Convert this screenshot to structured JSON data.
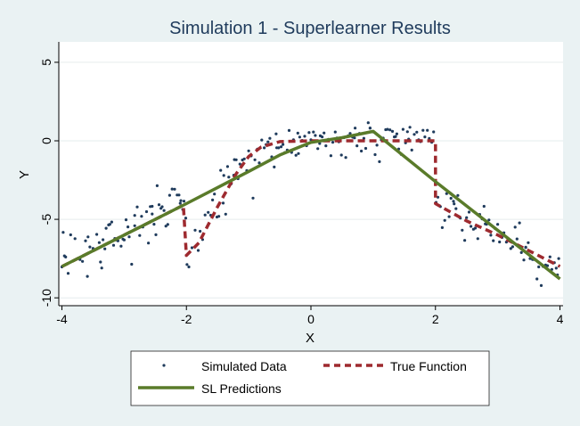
{
  "chart_data": {
    "type": "line",
    "title": "Simulation 1 - Superlearner Results",
    "xlabel": "X",
    "ylabel": "Y",
    "xlim": [
      -4.05,
      4.05
    ],
    "ylim": [
      -10.5,
      6.3
    ],
    "x_ticks": [
      -4,
      -2,
      0,
      2,
      4
    ],
    "x_tick_labels": [
      "-4",
      "-2",
      "0",
      "2",
      "4"
    ],
    "y_ticks": [
      5,
      0,
      -5,
      -10
    ],
    "y_tick_labels": [
      "5",
      "0",
      "-5",
      "-10"
    ],
    "grid": "horizontal",
    "legend_position": "bottom",
    "legend": {
      "scatter": "Simulated Data",
      "true_function": "True Function",
      "sl": "SL Predictions"
    },
    "colors": {
      "background": "#eaf2f3",
      "plot_area": "#ffffff",
      "title": "#1f3b5c",
      "scatter": "#1f3b5c",
      "true_function": "#9e2a2f",
      "sl": "#5a7b2a"
    },
    "series": [
      {
        "key": "true_function",
        "type": "line",
        "style": "dashed",
        "x": [
          -4,
          -3,
          -2.05,
          -2,
          -1.8,
          -1.5,
          -1.2,
          -1,
          -0.8,
          -0.5,
          0,
          1,
          2,
          2,
          2.5,
          3,
          3.5,
          4
        ],
        "y": [
          -8,
          -6,
          -4.1,
          -7.3,
          -6.5,
          -4.2,
          -2.1,
          -1,
          -0.4,
          -0.05,
          0,
          0,
          0,
          -4,
          -5.1,
          -6,
          -7,
          -8
        ]
      },
      {
        "key": "sl",
        "type": "line",
        "style": "solid",
        "x": [
          -4,
          -2,
          -1,
          -0.5,
          0,
          0.5,
          1,
          2,
          3,
          4
        ],
        "y": [
          -8,
          -4,
          -1.95,
          -0.9,
          -0.1,
          0.2,
          0.6,
          -2.6,
          -5.7,
          -8.8
        ]
      },
      {
        "key": "scatter",
        "type": "scatter",
        "points": [
          [
            -4.0,
            -8.03
          ],
          [
            -3.98,
            -5.83
          ],
          [
            -3.96,
            -7.33
          ],
          [
            -3.94,
            -7.4
          ],
          [
            -3.9,
            -8.44
          ],
          [
            -3.86,
            -5.99
          ],
          [
            -3.79,
            -6.23
          ],
          [
            -3.71,
            -7.56
          ],
          [
            -3.62,
            -6.37
          ],
          [
            -3.59,
            -8.63
          ],
          [
            -3.58,
            -6.12
          ],
          [
            -3.55,
            -6.76
          ],
          [
            -3.5,
            -6.85
          ],
          [
            -3.44,
            -5.96
          ],
          [
            -3.4,
            -6.48
          ],
          [
            -3.38,
            -7.72
          ],
          [
            -3.36,
            -8.1
          ],
          [
            -3.34,
            -6.3
          ],
          [
            -3.31,
            -6.88
          ],
          [
            -3.29,
            -5.57
          ],
          [
            -3.25,
            -5.36
          ],
          [
            -3.23,
            -5.32
          ],
          [
            -3.2,
            -5.17
          ],
          [
            -3.17,
            -6.65
          ],
          [
            -3.15,
            -6.22
          ],
          [
            -3.13,
            -6.31
          ],
          [
            -3.1,
            -6.37
          ],
          [
            -3.05,
            -6.71
          ],
          [
            -3.02,
            -6.26
          ],
          [
            -3.0,
            -6.31
          ],
          [
            -2.97,
            -5.03
          ],
          [
            -2.94,
            -5.48
          ],
          [
            -2.92,
            -6.11
          ],
          [
            -2.88,
            -7.86
          ],
          [
            -2.83,
            -4.75
          ],
          [
            -2.79,
            -4.21
          ],
          [
            -2.75,
            -6.03
          ],
          [
            -2.72,
            -4.81
          ],
          [
            -2.7,
            -5.49
          ],
          [
            -2.68,
            -5.35
          ],
          [
            -2.64,
            -4.51
          ],
          [
            -2.61,
            -6.51
          ],
          [
            -2.58,
            -4.19
          ],
          [
            -2.55,
            -4.17
          ],
          [
            -2.52,
            -5.31
          ],
          [
            -2.49,
            -5.98
          ],
          [
            -2.47,
            -2.86
          ],
          [
            -2.44,
            -4.07
          ],
          [
            -2.41,
            -4.3
          ],
          [
            -2.39,
            -4.2
          ],
          [
            -2.36,
            -4.44
          ],
          [
            -2.33,
            -5.43
          ],
          [
            -2.3,
            -5.33
          ],
          [
            -2.27,
            -3.47
          ],
          [
            -2.23,
            -3.07
          ],
          [
            -2.19,
            -3.08
          ],
          [
            -2.15,
            -3.45
          ],
          [
            -2.12,
            -3.45
          ],
          [
            -2.09,
            -3.81
          ],
          [
            -2.06,
            -4.37
          ],
          [
            -2.04,
            -3.84
          ],
          [
            -2.01,
            -4.92
          ],
          [
            -1.99,
            -7.88
          ],
          [
            -1.96,
            -8.03
          ],
          [
            -1.91,
            -6.81
          ],
          [
            -1.86,
            -5.69
          ],
          [
            -1.81,
            -6.98
          ],
          [
            -1.78,
            -5.76
          ],
          [
            -1.74,
            -6.29
          ],
          [
            -1.7,
            -4.72
          ],
          [
            -1.65,
            -4.56
          ],
          [
            -1.61,
            -4.74
          ],
          [
            -1.58,
            -3.77
          ],
          [
            -1.55,
            -3.39
          ],
          [
            -1.51,
            -4.85
          ],
          [
            -1.48,
            -4.81
          ],
          [
            -1.45,
            -1.88
          ],
          [
            -1.41,
            -3.97
          ],
          [
            -1.37,
            -4.67
          ],
          [
            -1.34,
            -1.64
          ],
          [
            -1.32,
            -2.31
          ],
          [
            -1.28,
            -2.73
          ],
          [
            -1.24,
            -2.19
          ],
          [
            -1.2,
            -1.21
          ],
          [
            -1.17,
            -2.41
          ],
          [
            -1.14,
            -1.48
          ],
          [
            -1.1,
            -1.22
          ],
          [
            -1.07,
            -1.15
          ],
          [
            -1.03,
            -1.89
          ],
          [
            -1.0,
            -0.64
          ],
          [
            -0.96,
            -0.96
          ],
          [
            -0.93,
            -3.65
          ],
          [
            -0.9,
            -1.21
          ],
          [
            -0.86,
            -0.53
          ],
          [
            -0.83,
            -1.4
          ],
          [
            -0.79,
            0.05
          ],
          [
            -0.75,
            -0.45
          ],
          [
            -0.72,
            -0.24
          ],
          [
            -0.69,
            -0.07
          ],
          [
            -0.66,
            0.16
          ],
          [
            -0.63,
            -1.02
          ],
          [
            -0.59,
            -1.67
          ],
          [
            -0.56,
            0.44
          ],
          [
            -0.52,
            -0.45
          ],
          [
            -0.48,
            -0.38
          ],
          [
            -0.45,
            -0.23
          ],
          [
            -0.42,
            -0.75
          ],
          [
            -0.38,
            -0.59
          ],
          [
            -0.35,
            0.66
          ],
          [
            -0.31,
            -0.74
          ],
          [
            -0.28,
            0.06
          ],
          [
            -0.24,
            -0.92
          ],
          [
            -0.21,
            0.49
          ],
          [
            -0.18,
            0.24
          ],
          [
            -0.14,
            0.02
          ],
          [
            -0.1,
            0.29
          ],
          [
            -0.07,
            -0.31
          ],
          [
            -0.03,
            0.53
          ],
          [
            0.0,
            0.07
          ],
          [
            0.04,
            0.56
          ],
          [
            0.07,
            0.34
          ],
          [
            0.11,
            -0.5
          ],
          [
            0.14,
            -0.17
          ],
          [
            0.18,
            0.25
          ],
          [
            0.21,
            0.5
          ],
          [
            0.24,
            -0.32
          ],
          [
            0.28,
            0.09
          ],
          [
            0.32,
            -0.95
          ],
          [
            0.35,
            -0.09
          ],
          [
            0.39,
            0.56
          ],
          [
            0.42,
            0.18
          ],
          [
            0.45,
            -0.06
          ],
          [
            0.49,
            -0.91
          ],
          [
            0.53,
            0.2
          ],
          [
            0.56,
            -1.06
          ],
          [
            0.6,
            0.32
          ],
          [
            0.63,
            0.47
          ],
          [
            0.67,
            0.23
          ],
          [
            0.71,
            0.81
          ],
          [
            0.74,
            -0.32
          ],
          [
            0.78,
            0.47
          ],
          [
            0.81,
            -0.65
          ],
          [
            0.85,
            0.16
          ],
          [
            0.88,
            -0.48
          ],
          [
            0.92,
            1.15
          ],
          [
            0.95,
            0.81
          ],
          [
            0.99,
            0.57
          ],
          [
            1.03,
            -0.88
          ],
          [
            1.06,
            -0.28
          ],
          [
            1.1,
            -1.33
          ],
          [
            1.13,
            0.06
          ],
          [
            1.16,
            0.17
          ],
          [
            1.2,
            0.71
          ],
          [
            1.23,
            0.73
          ],
          [
            1.27,
            0.7
          ],
          [
            1.31,
            0.6
          ],
          [
            1.34,
            0.25
          ],
          [
            1.38,
            0.44
          ],
          [
            1.41,
            -0.52
          ],
          [
            1.45,
            -0.86
          ],
          [
            1.48,
            0.73
          ],
          [
            1.52,
            -0.13
          ],
          [
            1.55,
            0.58
          ],
          [
            1.59,
            0.86
          ],
          [
            1.62,
            -0.59
          ],
          [
            1.66,
            0.41
          ],
          [
            1.7,
            0.55
          ],
          [
            1.73,
            0.06
          ],
          [
            1.76,
            -0.05
          ],
          [
            1.8,
            0.67
          ],
          [
            1.83,
            0.25
          ],
          [
            1.87,
            0.67
          ],
          [
            1.9,
            0.15
          ],
          [
            1.94,
            -0.09
          ],
          [
            1.97,
            0.57
          ],
          [
            2.01,
            -3.92
          ],
          [
            2.04,
            -3.59
          ],
          [
            2.08,
            -4.19
          ],
          [
            2.11,
            -5.53
          ],
          [
            2.15,
            -5.07
          ],
          [
            2.18,
            -3.36
          ],
          [
            2.22,
            -4.83
          ],
          [
            2.25,
            -3.66
          ],
          [
            2.29,
            -3.85
          ],
          [
            2.33,
            -4.32
          ],
          [
            2.36,
            -3.48
          ],
          [
            2.4,
            -4.92
          ],
          [
            2.43,
            -5.69
          ],
          [
            2.47,
            -6.34
          ],
          [
            2.5,
            -4.89
          ],
          [
            2.54,
            -4.54
          ],
          [
            2.57,
            -5.45
          ],
          [
            2.61,
            -5.63
          ],
          [
            2.64,
            -5.56
          ],
          [
            2.68,
            -6.23
          ],
          [
            2.71,
            -4.69
          ],
          [
            2.75,
            -4.97
          ],
          [
            2.78,
            -4.17
          ],
          [
            2.82,
            -5.31
          ],
          [
            2.86,
            -5.04
          ],
          [
            2.89,
            -6.01
          ],
          [
            2.93,
            -6.36
          ],
          [
            2.96,
            -5.59
          ],
          [
            3.0,
            -5.32
          ],
          [
            3.03,
            -6.44
          ],
          [
            3.07,
            -6.15
          ],
          [
            3.1,
            -5.86
          ],
          [
            3.14,
            -6.45
          ],
          [
            3.17,
            -6.33
          ],
          [
            3.21,
            -6.86
          ],
          [
            3.24,
            -6.75
          ],
          [
            3.28,
            -5.5
          ],
          [
            3.31,
            -6.25
          ],
          [
            3.35,
            -5.23
          ],
          [
            3.38,
            -7.12
          ],
          [
            3.42,
            -7.59
          ],
          [
            3.45,
            -6.77
          ],
          [
            3.49,
            -6.49
          ],
          [
            3.52,
            -7.5
          ],
          [
            3.56,
            -7.56
          ],
          [
            3.59,
            -7.56
          ],
          [
            3.63,
            -8.8
          ],
          [
            3.66,
            -8.03
          ],
          [
            3.7,
            -9.22
          ],
          [
            3.73,
            -8.0
          ],
          [
            3.77,
            -7.91
          ],
          [
            3.8,
            -7.95
          ],
          [
            3.84,
            -7.39
          ],
          [
            3.87,
            -8.19
          ],
          [
            3.91,
            -7.76
          ],
          [
            3.94,
            -8.11
          ],
          [
            3.96,
            -8.54
          ],
          [
            3.98,
            -7.5
          ],
          [
            -2.55,
            -4.66
          ],
          [
            -1.4,
            -2.21
          ],
          [
            0.7,
            0.19
          ],
          [
            1.36,
            0.27
          ],
          [
            2.8,
            -5.29
          ],
          [
            -0.2,
            -0.81
          ],
          [
            -3.67,
            -7.68
          ],
          [
            -2.83,
            -5.41
          ],
          [
            -1.23,
            -1.2
          ],
          [
            0.15,
            0.32
          ],
          [
            1.57,
            0.11
          ],
          [
            3.45,
            -6.8
          ],
          [
            -0.55,
            -0.44
          ],
          [
            -2.1,
            -3.98
          ],
          [
            0.95,
            0.81
          ],
          [
            2.3,
            -4.01
          ],
          [
            -3.2,
            -6.4
          ]
        ]
      }
    ]
  }
}
